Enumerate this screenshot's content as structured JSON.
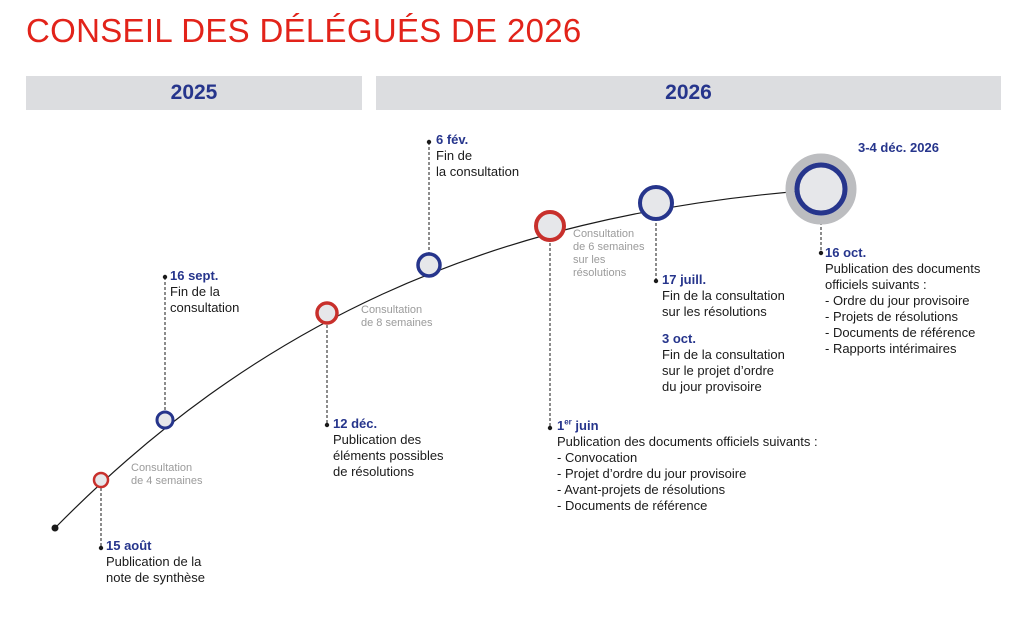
{
  "title": "CONSEIL DES DÉLÉGUÉS DE 2026",
  "colors": {
    "title": "#e2231a",
    "blue": "#26358c",
    "red": "#c8302c",
    "band": "#dcdde0",
    "duration_text": "#9b9b9b"
  },
  "years": [
    "2025",
    "2026"
  ],
  "milestones": [
    {
      "date": "15 août",
      "lines": [
        "Publication de la",
        "note de synthèse"
      ]
    },
    {
      "date": "16 sept.",
      "lines": [
        "Fin de la",
        "consultation"
      ]
    },
    {
      "date": "12 déc.",
      "lines": [
        "Publication des",
        "éléments possibles",
        "de résolutions"
      ]
    },
    {
      "date": "6 fév.",
      "lines": [
        "Fin de",
        "la consultation"
      ]
    },
    {
      "date_main": "1",
      "date_sup": "er",
      "date_rest": " juin",
      "lines": [
        "Publication des documents officiels suivants :",
        "- Convocation",
        "- Projet d’ordre du jour provisoire",
        "- Avant-projets de résolutions",
        "- Documents de référence"
      ]
    },
    {
      "date": "17 juill.",
      "lines": [
        "Fin de la consultation",
        "sur les résolutions"
      ]
    },
    {
      "date": "3 oct.",
      "lines": [
        "Fin de la consultation",
        "sur le projet d’ordre",
        "du jour provisoire"
      ]
    },
    {
      "date": "16 oct.",
      "lines": [
        "Publication des documents",
        "officiels suivants :",
        "- Ordre du jour provisoire",
        "- Projets de résolutions",
        "- Documents de référence",
        "- Rapports intérimaires"
      ]
    },
    {
      "date": "3-4 déc. 2026",
      "lines": []
    }
  ],
  "durations": [
    {
      "lines": [
        "Consultation",
        "de 4 semaines"
      ]
    },
    {
      "lines": [
        "Consultation",
        "de 8 semaines"
      ]
    },
    {
      "lines": [
        "Consultation",
        "de 6 semaines",
        "sur les",
        "résolutions"
      ]
    }
  ]
}
